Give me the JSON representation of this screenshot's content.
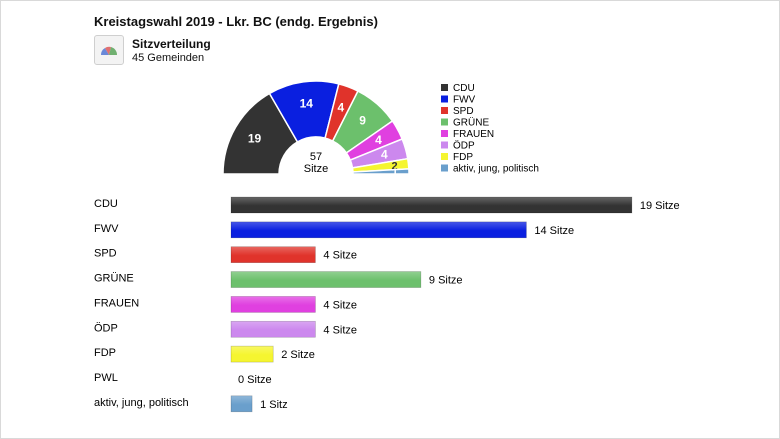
{
  "header": {
    "title": "Kreistagswahl 2019 - Lkr. BC (endg. Ergebnis)",
    "subtitle": "Sitzverteilung",
    "municipalities": "45 Gemeinden"
  },
  "chart_data": [
    {
      "type": "pie",
      "variant": "half-donut",
      "center_value": "57",
      "center_label": "Sitze",
      "categories": [
        "CDU",
        "FWV",
        "SPD",
        "GRÜNE",
        "FRAUEN",
        "ÖDP",
        "FDP",
        "aktiv, jung, politisch"
      ],
      "values": [
        19,
        14,
        4,
        9,
        4,
        4,
        2,
        1
      ],
      "colors": [
        "#333333",
        "#0a1fe0",
        "#e0332b",
        "#6cc06c",
        "#e040e0",
        "#cc88ee",
        "#f5f530",
        "#6a9fcc"
      ],
      "legend": [
        "CDU",
        "FWV",
        "SPD",
        "GRÜNE",
        "FRAUEN",
        "ÖDP",
        "FDP",
        "aktiv, jung, politisch"
      ],
      "legend_position": "right"
    },
    {
      "type": "bar",
      "orientation": "horizontal",
      "categories": [
        "CDU",
        "FWV",
        "SPD",
        "GRÜNE",
        "FRAUEN",
        "ÖDP",
        "FDP",
        "PWL",
        "aktiv, jung, politisch"
      ],
      "values": [
        19,
        14,
        4,
        9,
        4,
        4,
        2,
        0,
        1
      ],
      "value_labels": [
        "19 Sitze",
        "14 Sitze",
        "4 Sitze",
        "9 Sitze",
        "4 Sitze",
        "4 Sitze",
        "2 Sitze",
        "0 Sitze",
        "1 Sitz"
      ],
      "colors": [
        "#333333",
        "#0a1fe0",
        "#e0332b",
        "#6cc06c",
        "#e040e0",
        "#cc88ee",
        "#f5f530",
        "#999999",
        "#6a9fcc"
      ]
    }
  ]
}
